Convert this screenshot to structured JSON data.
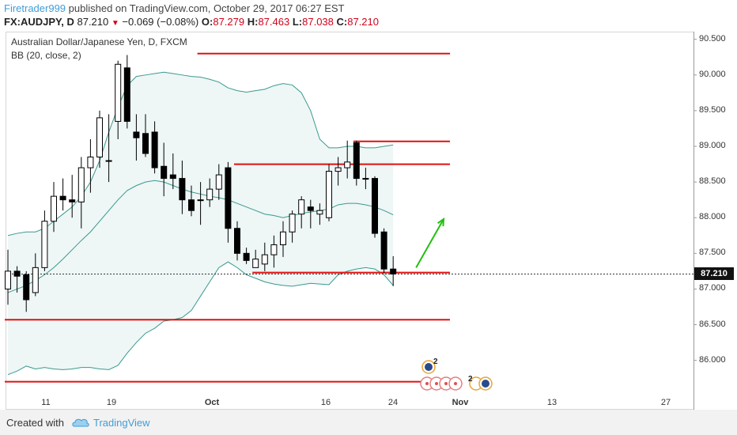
{
  "header": {
    "author": "Firetrader999",
    "published_text": " published on TradingView.com, October 29, 2017 06:27 EST",
    "symbol": "FX:AUDJPY, D",
    "last": "87.210",
    "change_arrow": "▼",
    "change": "−0.069 (−0.08%)",
    "o_label": "O:",
    "o_value": "87.279",
    "h_label": "H:",
    "h_value": "87.463",
    "l_label": "L:",
    "l_value": "87.038",
    "c_label": "C:",
    "c_value": "87.210"
  },
  "legend": {
    "instrument": "Australian Dollar/Japanese Yen, D, FXCM",
    "indicator": "BB (20, close, 2)"
  },
  "price_tag": "87.210",
  "footer": {
    "created_with": "Created with",
    "brand": "TradingView"
  },
  "colors": {
    "up": "#ffffff",
    "down": "#000000",
    "band": "#3a9a8e",
    "band_fill": "#eef6f6",
    "level": "#e01010",
    "arrow": "#21c00e"
  },
  "chart_data": {
    "type": "candlestick",
    "y_ticks": [
      "90.500",
      "90.000",
      "89.500",
      "89.000",
      "88.500",
      "88.000",
      "87.500",
      "87.000",
      "86.500",
      "86.000"
    ],
    "x_ticks": [
      "11",
      "19",
      "Oct",
      "16",
      "24",
      "Nov",
      "13",
      "27"
    ],
    "ylim": [
      85.63,
      90.53
    ],
    "candles": [
      {
        "o": 87.0,
        "h": 87.55,
        "l": 86.78,
        "c": 87.25
      },
      {
        "o": 87.25,
        "h": 87.32,
        "l": 86.95,
        "c": 87.18
      },
      {
        "o": 87.2,
        "h": 87.25,
        "l": 86.68,
        "c": 86.85
      },
      {
        "o": 86.95,
        "h": 87.5,
        "l": 86.9,
        "c": 87.3
      },
      {
        "o": 87.3,
        "h": 88.1,
        "l": 87.25,
        "c": 87.95
      },
      {
        "o": 87.95,
        "h": 88.5,
        "l": 87.8,
        "c": 88.3
      },
      {
        "o": 88.3,
        "h": 88.55,
        "l": 88.1,
        "c": 88.25
      },
      {
        "o": 88.25,
        "h": 88.6,
        "l": 88.0,
        "c": 88.22
      },
      {
        "o": 88.22,
        "h": 88.85,
        "l": 87.85,
        "c": 88.7
      },
      {
        "o": 88.7,
        "h": 89.1,
        "l": 88.35,
        "c": 88.85
      },
      {
        "o": 88.85,
        "h": 89.5,
        "l": 88.7,
        "c": 89.4
      },
      {
        "o": 88.8,
        "h": 89.45,
        "l": 88.5,
        "c": 88.8
      },
      {
        "o": 89.35,
        "h": 90.2,
        "l": 89.1,
        "c": 90.15
      },
      {
        "o": 90.1,
        "h": 90.28,
        "l": 89.25,
        "c": 89.35
      },
      {
        "o": 89.2,
        "h": 89.45,
        "l": 88.8,
        "c": 89.12
      },
      {
        "o": 89.18,
        "h": 89.45,
        "l": 88.85,
        "c": 88.9
      },
      {
        "o": 89.2,
        "h": 89.35,
        "l": 88.62,
        "c": 88.7
      },
      {
        "o": 88.72,
        "h": 89.05,
        "l": 88.3,
        "c": 88.55
      },
      {
        "o": 88.6,
        "h": 88.9,
        "l": 88.4,
        "c": 88.55
      },
      {
        "o": 88.55,
        "h": 88.8,
        "l": 88.05,
        "c": 88.25
      },
      {
        "o": 88.25,
        "h": 88.45,
        "l": 88.02,
        "c": 88.1
      },
      {
        "o": 88.25,
        "h": 88.5,
        "l": 87.9,
        "c": 88.25
      },
      {
        "o": 88.25,
        "h": 88.55,
        "l": 88.15,
        "c": 88.4
      },
      {
        "o": 88.4,
        "h": 88.75,
        "l": 88.25,
        "c": 88.6
      },
      {
        "o": 88.7,
        "h": 88.78,
        "l": 87.65,
        "c": 87.85
      },
      {
        "o": 87.85,
        "h": 87.95,
        "l": 87.4,
        "c": 87.5
      },
      {
        "o": 87.5,
        "h": 87.58,
        "l": 87.35,
        "c": 87.4
      },
      {
        "o": 87.3,
        "h": 87.55,
        "l": 87.3,
        "c": 87.42
      },
      {
        "o": 87.35,
        "h": 87.65,
        "l": 87.25,
        "c": 87.48
      },
      {
        "o": 87.48,
        "h": 87.75,
        "l": 87.3,
        "c": 87.62
      },
      {
        "o": 87.62,
        "h": 87.95,
        "l": 87.45,
        "c": 87.8
      },
      {
        "o": 87.8,
        "h": 88.1,
        "l": 87.65,
        "c": 88.05
      },
      {
        "o": 88.05,
        "h": 88.3,
        "l": 87.85,
        "c": 88.25
      },
      {
        "o": 88.15,
        "h": 88.25,
        "l": 87.85,
        "c": 88.1
      },
      {
        "o": 88.05,
        "h": 88.2,
        "l": 87.9,
        "c": 88.1
      },
      {
        "o": 88.0,
        "h": 88.75,
        "l": 87.95,
        "c": 88.65
      },
      {
        "o": 88.65,
        "h": 88.85,
        "l": 88.45,
        "c": 88.7
      },
      {
        "o": 88.7,
        "h": 89.08,
        "l": 88.55,
        "c": 88.78
      },
      {
        "o": 89.05,
        "h": 89.08,
        "l": 88.45,
        "c": 88.55
      },
      {
        "o": 88.55,
        "h": 88.7,
        "l": 88.4,
        "c": 88.55
      },
      {
        "o": 88.55,
        "h": 88.58,
        "l": 87.72,
        "c": 87.78
      },
      {
        "o": 87.8,
        "h": 87.85,
        "l": 87.22,
        "c": 87.28
      },
      {
        "o": 87.28,
        "h": 87.46,
        "l": 87.04,
        "c": 87.21
      }
    ],
    "bb_upper": [
      87.75,
      87.78,
      87.8,
      87.8,
      87.85,
      87.95,
      88.05,
      88.15,
      88.3,
      88.5,
      88.8,
      89.2,
      89.55,
      89.85,
      89.98,
      90.0,
      90.02,
      90.04,
      90.02,
      90.0,
      89.98,
      89.97,
      89.94,
      89.9,
      89.82,
      89.78,
      89.76,
      89.78,
      89.8,
      89.85,
      89.88,
      89.86,
      89.75,
      89.5,
      89.1,
      88.98,
      88.98,
      89.0,
      89.0,
      88.98,
      88.98,
      89.0,
      89.02
    ],
    "bb_middle": [
      86.95,
      87.0,
      87.05,
      87.12,
      87.2,
      87.3,
      87.42,
      87.55,
      87.68,
      87.8,
      87.95,
      88.1,
      88.25,
      88.38,
      88.45,
      88.5,
      88.52,
      88.5,
      88.45,
      88.4,
      88.36,
      88.33,
      88.3,
      88.28,
      88.25,
      88.2,
      88.15,
      88.1,
      88.05,
      88.03,
      88.0,
      88.03,
      88.06,
      88.08,
      88.1,
      88.12,
      88.18,
      88.2,
      88.2,
      88.18,
      88.15,
      88.1,
      88.04
    ],
    "bb_lower": [
      85.8,
      85.85,
      85.92,
      85.88,
      85.9,
      85.88,
      85.87,
      85.88,
      85.9,
      85.9,
      85.88,
      85.87,
      85.93,
      86.1,
      86.25,
      86.38,
      86.45,
      86.55,
      86.57,
      86.6,
      86.7,
      86.9,
      87.1,
      87.3,
      87.38,
      87.3,
      87.2,
      87.15,
      87.1,
      87.07,
      87.05,
      87.04,
      87.06,
      87.08,
      87.07,
      87.06,
      87.2,
      87.25,
      87.28,
      87.3,
      87.28,
      87.2,
      87.05
    ],
    "levels": [
      {
        "y": 90.3,
        "x_from": 21,
        "x_to": "right"
      },
      {
        "y": 89.07,
        "x_from": 38,
        "x_to": "right"
      },
      {
        "y": 88.75,
        "x_from": 25,
        "x_to": "right"
      },
      {
        "y": 87.23,
        "x_from": 27,
        "x_to": "right"
      },
      {
        "y": 86.57,
        "x_from": 0,
        "x_to": "right"
      },
      {
        "y": 85.7,
        "x_from": 0,
        "x_to": "right"
      }
    ],
    "arrow": {
      "from": {
        "x": 44.5,
        "y": 87.3
      },
      "to": {
        "x": 47.5,
        "y": 87.98
      }
    },
    "last_price": 87.21,
    "event_markers": {
      "top_count": "2",
      "bottom_count": "2"
    }
  }
}
